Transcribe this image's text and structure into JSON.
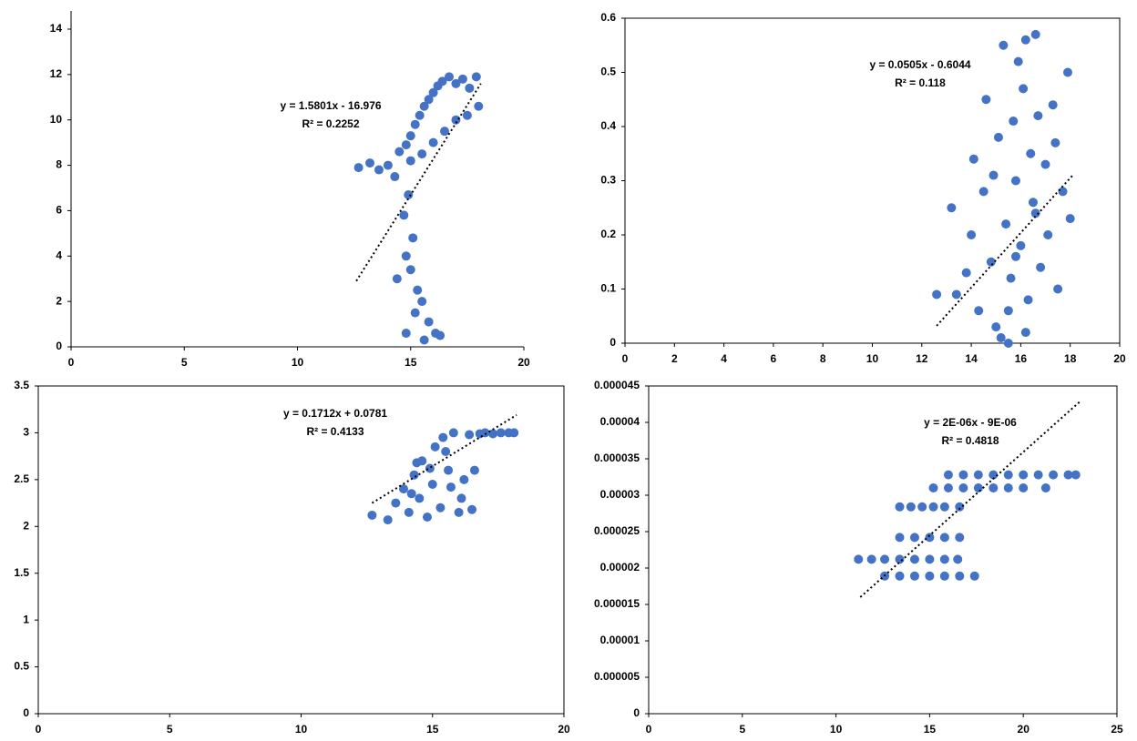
{
  "chart_data": [
    {
      "type": "scatter",
      "color": "#4472c4",
      "annotations": [
        "y = 1.5801x - 16.976",
        "R² = 0.2252"
      ],
      "x": [
        12.7,
        13.2,
        13.6,
        14,
        14.3,
        14.5,
        14.8,
        15,
        15.2,
        15.4,
        15.6,
        15.8,
        16,
        16.2,
        16.4,
        16.7,
        17,
        17.3,
        17.6,
        17.9,
        18,
        17.5,
        17,
        16.5,
        16,
        15.5,
        15,
        14.9,
        14.7,
        15.1,
        14.8,
        15,
        14.4,
        15.3,
        15.5,
        15.2,
        15.8,
        16.1,
        15.6,
        16.3,
        14.8
      ],
      "y": [
        7.9,
        8.1,
        7.8,
        8,
        7.5,
        8.6,
        8.9,
        9.3,
        9.8,
        10.2,
        10.6,
        10.9,
        11.2,
        11.5,
        11.7,
        11.9,
        11.6,
        11.8,
        11.4,
        11.9,
        10.6,
        10.2,
        10,
        9.5,
        9,
        8.5,
        8.2,
        6.7,
        5.8,
        4.8,
        4,
        3.4,
        3,
        2.5,
        2,
        1.5,
        1.1,
        0.6,
        0.3,
        0.5,
        0.6
      ],
      "trendline": {
        "x": [
          12.6,
          18.1
        ],
        "y": [
          2.9,
          11.6
        ]
      },
      "xlim": [
        0,
        20
      ],
      "ylim": [
        0,
        14
      ],
      "xticks": [
        0,
        5,
        10,
        15,
        20
      ],
      "yticks": [
        0,
        2,
        4,
        6,
        8,
        10,
        12,
        14
      ]
    },
    {
      "type": "scatter",
      "color": "#4472c4",
      "annotations": [
        "y = 0.0505x - 0.6044",
        "R² = 0.118"
      ],
      "x": [
        12.6,
        13.2,
        13.4,
        13.8,
        14,
        14.1,
        14.3,
        14.5,
        14.6,
        14.8,
        15,
        15.1,
        15.2,
        15.3,
        15.4,
        15.5,
        15.6,
        15.7,
        15.8,
        15.9,
        16,
        16.1,
        16.2,
        16.3,
        16.4,
        16.5,
        16.6,
        16.7,
        16.8,
        17,
        17.1,
        17.3,
        17.5,
        17.7,
        17.9,
        18,
        15.5,
        16.2,
        14.9,
        17.4,
        15.8,
        16.6
      ],
      "y": [
        0.09,
        0.25,
        0.09,
        0.13,
        0.2,
        0.34,
        0.06,
        0.28,
        0.45,
        0.15,
        0.03,
        0.38,
        0.01,
        0.55,
        0.22,
        0.0,
        0.12,
        0.41,
        0.3,
        0.52,
        0.18,
        0.47,
        0.56,
        0.08,
        0.35,
        0.26,
        0.57,
        0.42,
        0.14,
        0.33,
        0.2,
        0.44,
        0.1,
        0.28,
        0.5,
        0.23,
        0.06,
        0.02,
        0.31,
        0.37,
        0.16,
        0.24
      ],
      "trendline": {
        "x": [
          12.6,
          18.1
        ],
        "y": [
          0.032,
          0.31
        ]
      },
      "xlim": [
        0,
        20
      ],
      "ylim": [
        0,
        0.6
      ],
      "xticks": [
        0,
        2,
        4,
        6,
        8,
        10,
        12,
        14,
        16,
        18,
        20
      ],
      "yticks": [
        0,
        0.1,
        0.2,
        0.3,
        0.4,
        0.5,
        0.6
      ]
    },
    {
      "type": "scatter",
      "color": "#4472c4",
      "annotations": [
        "y = 0.1712x + 0.0781",
        "R² = 0.4133"
      ],
      "x": [
        12.7,
        13.3,
        13.6,
        13.9,
        14.1,
        14.3,
        14.5,
        14.6,
        14.8,
        15,
        15.1,
        15.3,
        15.4,
        15.6,
        15.8,
        16,
        16.2,
        16.4,
        16.6,
        16.8,
        17,
        17.3,
        17.6,
        17.9,
        18.1,
        14.2,
        14.9,
        15.5,
        16.1,
        15.7,
        14.4,
        16.5
      ],
      "y": [
        2.12,
        2.07,
        2.25,
        2.4,
        2.15,
        2.55,
        2.3,
        2.7,
        2.1,
        2.45,
        2.85,
        2.2,
        2.95,
        2.6,
        3,
        2.15,
        2.5,
        2.98,
        2.6,
        2.99,
        3,
        2.99,
        3,
        3,
        3,
        2.35,
        2.62,
        2.8,
        2.3,
        2.42,
        2.68,
        2.18
      ],
      "trendline": {
        "x": [
          12.7,
          18.2
        ],
        "y": [
          2.25,
          3.19
        ]
      },
      "xlim": [
        0,
        20
      ],
      "ylim": [
        0,
        3.5
      ],
      "xticks": [
        0,
        5,
        10,
        15,
        20
      ],
      "yticks": [
        0,
        0.5,
        1,
        1.5,
        2,
        2.5,
        3,
        3.5
      ]
    },
    {
      "type": "scatter",
      "color": "#4472c4",
      "annotations": [
        "y = 2E-06x - 9E-06",
        "R² = 0.4818"
      ],
      "x": [
        16,
        16.8,
        17.6,
        18.4,
        19.2,
        20,
        20.8,
        21.6,
        22.4,
        22.8,
        15.2,
        16,
        16.8,
        17.6,
        18.4,
        19.2,
        20,
        21.2,
        13.4,
        14,
        14.6,
        15.2,
        15.8,
        16.6,
        13.4,
        14.2,
        15,
        15.8,
        16.6,
        11.2,
        11.9,
        12.6,
        13.4,
        14.2,
        15,
        15.8,
        16.5,
        12.6,
        13.4,
        14.2,
        15,
        15.8,
        16.6,
        17.4
      ],
      "y": [
        3.28e-05,
        3.28e-05,
        3.28e-05,
        3.28e-05,
        3.28e-05,
        3.28e-05,
        3.28e-05,
        3.28e-05,
        3.28e-05,
        3.28e-05,
        3.1e-05,
        3.1e-05,
        3.1e-05,
        3.1e-05,
        3.1e-05,
        3.1e-05,
        3.1e-05,
        3.1e-05,
        2.84e-05,
        2.84e-05,
        2.84e-05,
        2.84e-05,
        2.84e-05,
        2.84e-05,
        2.42e-05,
        2.42e-05,
        2.42e-05,
        2.42e-05,
        2.42e-05,
        2.12e-05,
        2.12e-05,
        2.12e-05,
        2.12e-05,
        2.12e-05,
        2.12e-05,
        2.12e-05,
        2.12e-05,
        1.89e-05,
        1.89e-05,
        1.89e-05,
        1.89e-05,
        1.89e-05,
        1.89e-05,
        1.89e-05
      ],
      "trendline": {
        "x": [
          11.3,
          23
        ],
        "y": [
          1.6e-05,
          4.28e-05
        ]
      },
      "xlim": [
        0,
        25
      ],
      "ylim": [
        0,
        4.5e-05
      ],
      "xticks": [
        0,
        5,
        10,
        15,
        20,
        25
      ],
      "yticks": [
        0,
        5e-06,
        1e-05,
        1.5e-05,
        2e-05,
        2.5e-05,
        3e-05,
        3.5e-05,
        4e-05,
        4.5e-05
      ]
    }
  ]
}
